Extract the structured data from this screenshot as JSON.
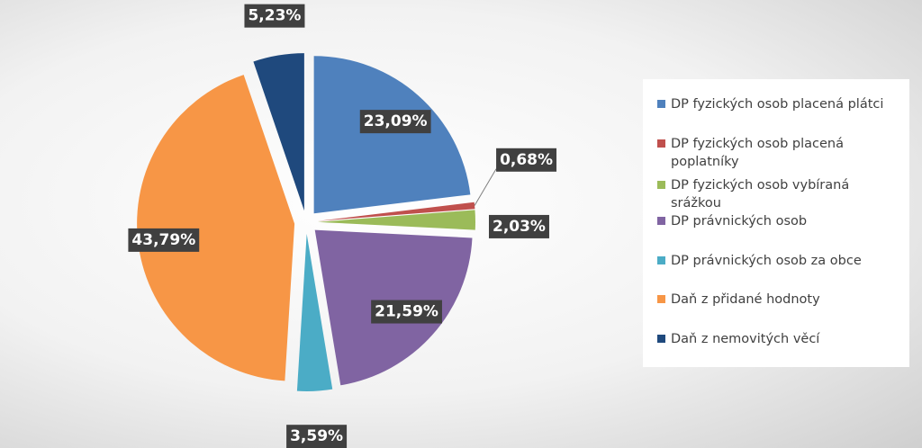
{
  "chart_data": {
    "type": "pie",
    "exploded": true,
    "legend_position": "right",
    "slices": [
      {
        "name": "DP fyzických osob placená plátci",
        "value": 23.09,
        "label": "23,09%",
        "color": "#4f81bd"
      },
      {
        "name": "DP fyzických osob placená poplatníky",
        "value": 0.68,
        "label": "0,68%",
        "color": "#c0504d"
      },
      {
        "name": "DP fyzických osob vybíraná srážkou",
        "value": 2.03,
        "label": "2,03%",
        "color": "#9bbb59"
      },
      {
        "name": "DP právnických osob",
        "value": 21.59,
        "label": "21,59%",
        "color": "#8064a2"
      },
      {
        "name": "DP právnických osob za obce",
        "value": 3.59,
        "label": "3,59%",
        "color": "#4bacc6"
      },
      {
        "name": "Daň z přidané hodnoty",
        "value": 43.79,
        "label": "43,79%",
        "color": "#f79646"
      },
      {
        "name": "Daň z nemovitých věcí",
        "value": 5.23,
        "label": "5,23%",
        "color": "#1f497d"
      }
    ]
  }
}
